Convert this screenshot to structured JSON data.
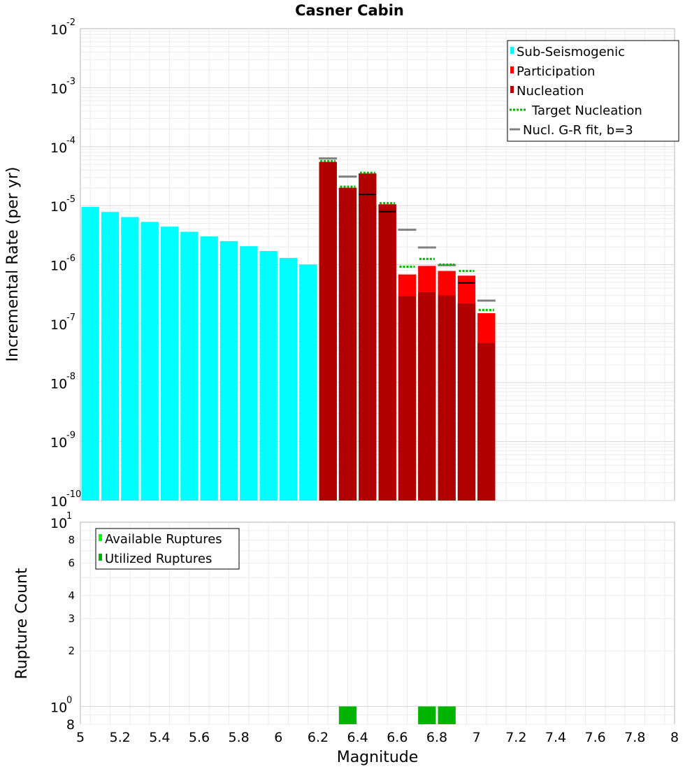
{
  "chart_data": [
    {
      "type": "bar",
      "title": "Casner Cabin",
      "xlabel": "Magnitude",
      "ylabel": "Incremental Rate (per yr)",
      "yscale": "log",
      "ylim": [
        1e-10,
        0.01
      ],
      "xlim": [
        5,
        8
      ],
      "grid": true,
      "legend_position": "top-right",
      "y_ticks": [
        {
          "base": "10",
          "exp": "-2",
          "value": 0.01
        },
        {
          "base": "10",
          "exp": "-3",
          "value": 0.001
        },
        {
          "base": "10",
          "exp": "-4",
          "value": 0.0001
        },
        {
          "base": "10",
          "exp": "-5",
          "value": 1e-05
        },
        {
          "base": "10",
          "exp": "-6",
          "value": 1e-06
        },
        {
          "base": "10",
          "exp": "-7",
          "value": 1e-07
        },
        {
          "base": "10",
          "exp": "-8",
          "value": 1e-08
        },
        {
          "base": "10",
          "exp": "-9",
          "value": 1e-09
        },
        {
          "base": "10",
          "exp": "-10",
          "value": 1e-10
        }
      ],
      "legend": [
        {
          "label": "Sub-Seismogenic",
          "color": "#00ffff",
          "kind": "bar"
        },
        {
          "label": "Participation",
          "color": "#ff0000",
          "kind": "bar"
        },
        {
          "label": "Nucleation",
          "color": "#b00000",
          "kind": "bar"
        },
        {
          "label": "Target Nucleation",
          "color": "#00b400",
          "kind": "dotted"
        },
        {
          "label": "Nucl. G-R fit, b=3",
          "color": "#808080",
          "kind": "line"
        }
      ],
      "series": [
        {
          "name": "Sub-Seismogenic",
          "color": "#00ffff",
          "x": [
            5.05,
            5.15,
            5.25,
            5.35,
            5.45,
            5.55,
            5.65,
            5.75,
            5.85,
            5.95,
            6.05,
            6.15
          ],
          "values": [
            9.5e-06,
            7.8e-06,
            6.4e-06,
            5.3e-06,
            4.4e-06,
            3.6e-06,
            3e-06,
            2.5e-06,
            2.05e-06,
            1.7e-06,
            1.3e-06,
            1e-06
          ]
        },
        {
          "name": "Participation",
          "color": "#ff0000",
          "x": [
            6.25,
            6.35,
            6.45,
            6.55,
            6.65,
            6.75,
            6.85,
            6.95,
            7.05
          ],
          "values": [
            5.5e-05,
            2e-05,
            3.5e-05,
            1.05e-05,
            6.8e-07,
            9.5e-07,
            7.8e-07,
            6.5e-07,
            1.5e-07
          ]
        },
        {
          "name": "Nucleation",
          "color": "#b00000",
          "x": [
            6.25,
            6.35,
            6.45,
            6.55,
            6.65,
            6.75,
            6.85,
            6.95,
            7.05
          ],
          "values": [
            5.5e-05,
            2e-05,
            3.5e-05,
            1.05e-05,
            2.9e-07,
            3.4e-07,
            3e-07,
            2.2e-07,
            4.7e-08
          ]
        },
        {
          "name": "Target Nucleation",
          "color": "#00b400",
          "x": [
            6.25,
            6.35,
            6.45,
            6.55,
            6.65,
            6.75,
            6.85,
            6.95,
            7.05
          ],
          "values": [
            5.7e-05,
            2.1e-05,
            3.6e-05,
            1.1e-05,
            9.2e-07,
            1.25e-06,
            1e-06,
            7.8e-07,
            1.7e-07
          ]
        },
        {
          "name": "Nucl. G-R fit, b=3",
          "color": "#808080",
          "x": [
            6.25,
            6.35,
            6.45,
            6.55,
            6.65,
            6.75,
            6.85,
            6.95,
            7.05
          ],
          "values": [
            6.3e-05,
            3.1e-05,
            1.55e-05,
            7.9e-06,
            3.9e-06,
            1.95e-06,
            9.8e-07,
            4.9e-07,
            2.45e-07
          ]
        }
      ]
    },
    {
      "type": "bar",
      "xlabel": "Magnitude",
      "ylabel": "Rupture Count",
      "yscale": "log",
      "ylim": [
        0.8,
        10
      ],
      "xlim": [
        5,
        8
      ],
      "grid": true,
      "legend_position": "top-left",
      "x_ticks": [
        "5",
        "5.2",
        "5.4",
        "5.6",
        "5.8",
        "6",
        "6.2",
        "6.4",
        "6.6",
        "6.8",
        "7",
        "7.2",
        "7.4",
        "7.6",
        "7.8",
        "8"
      ],
      "y_major_ticks": [
        {
          "base": "10",
          "exp": "1",
          "value": 10
        },
        {
          "base": "10",
          "exp": "0",
          "value": 1
        }
      ],
      "y_minor_ticks": [
        {
          "label": "8",
          "value": 8
        },
        {
          "label": "6",
          "value": 6
        },
        {
          "label": "4",
          "value": 4
        },
        {
          "label": "3",
          "value": 3
        },
        {
          "label": "2",
          "value": 2
        },
        {
          "label": "8",
          "value": 0.8
        }
      ],
      "legend": [
        {
          "label": "Available Ruptures",
          "color": "#00ff00"
        },
        {
          "label": "Utilized Ruptures",
          "color": "#00b400"
        }
      ],
      "series": [
        {
          "name": "Utilized Ruptures",
          "color": "#00b400",
          "x": [
            6.35,
            6.75,
            6.85
          ],
          "values": [
            1,
            1,
            1
          ]
        }
      ]
    }
  ]
}
